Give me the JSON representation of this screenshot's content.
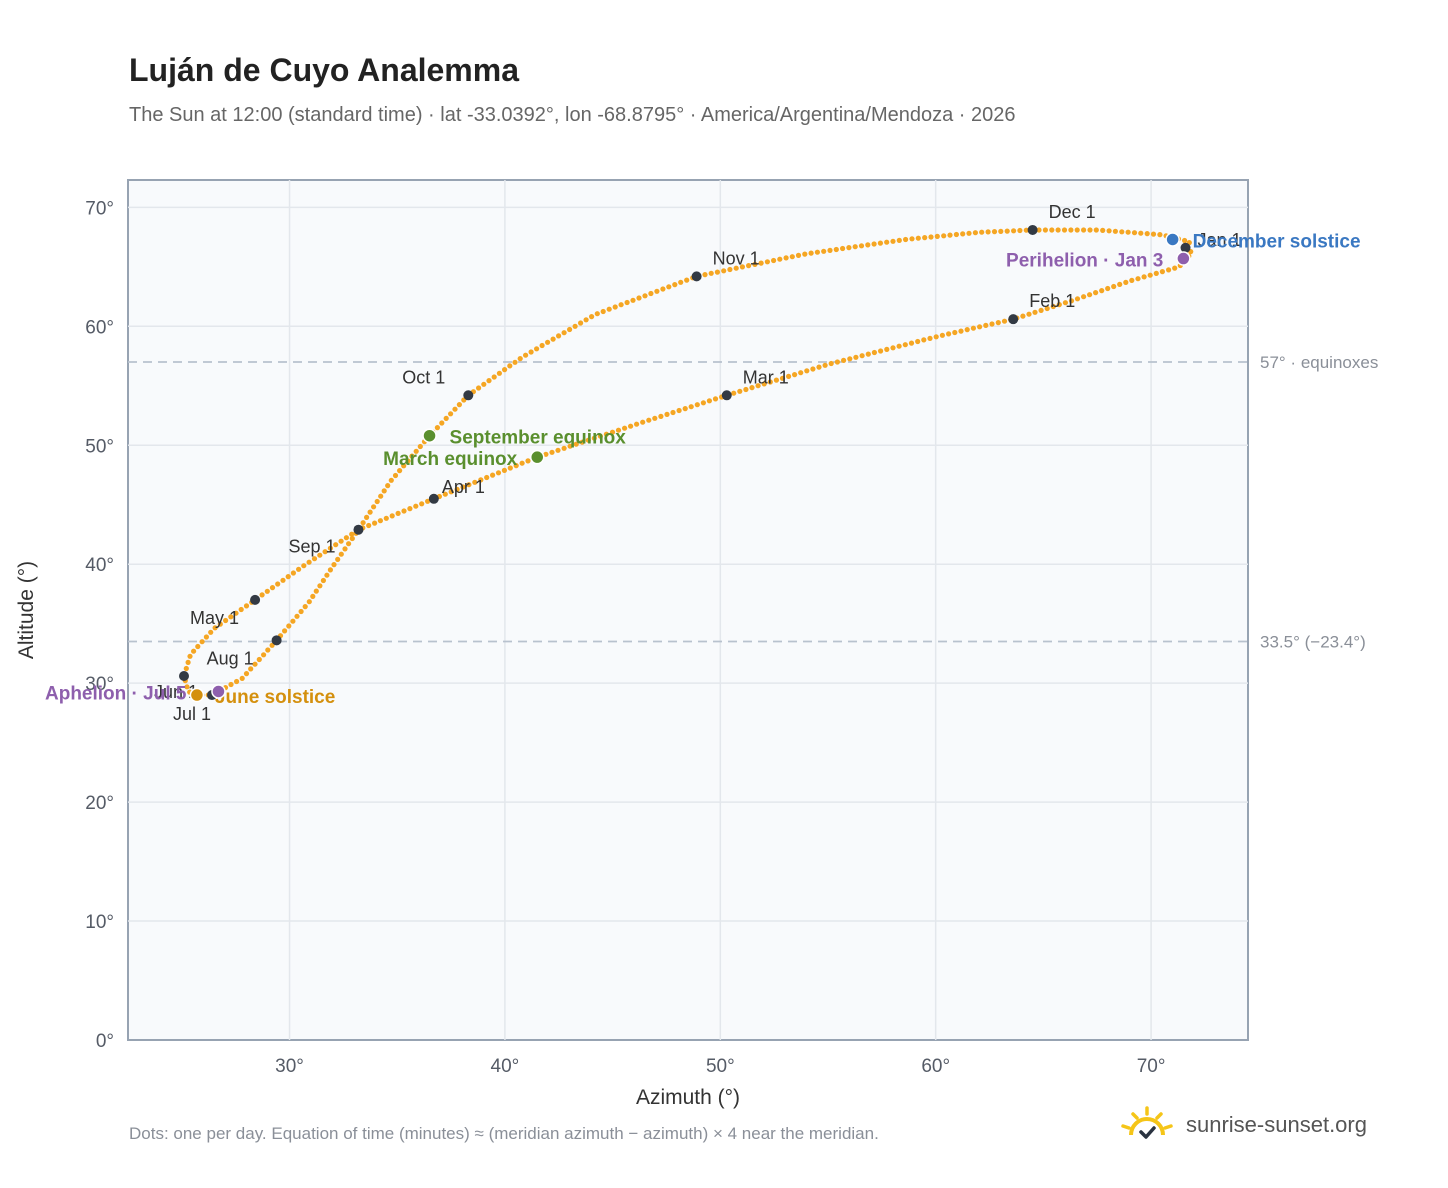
{
  "header": {
    "title": "Luján de Cuyo Analemma",
    "subtitle": "The Sun at 12:00 (standard time) · lat -33.0392°, lon -68.8795° · America/Argentina/Mendoza · 2026"
  },
  "footer": {
    "note": "Dots: one per day. Equation of time (minutes) ≈ (meridian azimuth − azimuth) × 4 near the meridian.",
    "brand": "sunrise-sunset.org"
  },
  "colors": {
    "path": "#f5a623",
    "month": "#333a44",
    "equinox": "#5a8f2e",
    "june_solstice": "#d4900e",
    "december_solstice": "#3a78c2",
    "apsis": "#8e5fad",
    "reference_line": "#b8c2ce",
    "plot_bg": "#f8fafc",
    "grid": "#e3e7ec",
    "axis_text": "#555b66",
    "brand_icon": "#f5c518"
  },
  "chart_data": {
    "type": "scatter",
    "title": "Luján de Cuyo Analemma",
    "xlabel": "Azimuth (°)",
    "ylabel": "Altitude (°)",
    "xlim": [
      22.5,
      74.5
    ],
    "ylim": [
      0,
      72.3
    ],
    "xticks": [
      30,
      40,
      50,
      60,
      70
    ],
    "yticks": [
      0,
      10,
      20,
      30,
      40,
      50,
      60,
      70
    ],
    "tick_suffix": "°",
    "grid": true,
    "reference_lines": [
      {
        "y": 57,
        "label": "57° · equinoxes"
      },
      {
        "y": 33.5,
        "label": "33.5° (−23.4°)"
      }
    ],
    "month_markers": [
      {
        "label": "Jan 1",
        "azimuth": 71.6,
        "altitude": 66.6
      },
      {
        "label": "Feb 1",
        "azimuth": 63.6,
        "altitude": 60.6
      },
      {
        "label": "Mar 1",
        "azimuth": 50.3,
        "altitude": 54.2
      },
      {
        "label": "Apr 1",
        "azimuth": 36.7,
        "altitude": 45.5
      },
      {
        "label": "May 1",
        "azimuth": 28.4,
        "altitude": 37.0
      },
      {
        "label": "Jun 1",
        "azimuth": 25.1,
        "altitude": 30.6
      },
      {
        "label": "Jul 1",
        "azimuth": 26.4,
        "altitude": 29.0
      },
      {
        "label": "Aug 1",
        "azimuth": 29.4,
        "altitude": 33.6
      },
      {
        "label": "Sep 1",
        "azimuth": 33.2,
        "altitude": 42.9
      },
      {
        "label": "Oct 1",
        "azimuth": 38.3,
        "altitude": 54.2
      },
      {
        "label": "Nov 1",
        "azimuth": 48.9,
        "altitude": 64.2
      },
      {
        "label": "Dec 1",
        "azimuth": 64.5,
        "altitude": 68.1
      }
    ],
    "events": [
      {
        "label": "March equinox",
        "azimuth": 41.5,
        "altitude": 49.0,
        "kind": "equinox"
      },
      {
        "label": "September equinox",
        "azimuth": 36.5,
        "altitude": 50.8,
        "kind": "equinox"
      },
      {
        "label": "June solstice",
        "azimuth": 25.7,
        "altitude": 29.0,
        "kind": "june_solstice"
      },
      {
        "label": "December solstice",
        "azimuth": 71.0,
        "altitude": 67.3,
        "kind": "december_solstice"
      },
      {
        "label": "Perihelion · Jan 3",
        "azimuth": 71.5,
        "altitude": 65.7,
        "kind": "apsis"
      },
      {
        "label": "Aphelion · Jul 5",
        "azimuth": 26.7,
        "altitude": 29.3,
        "kind": "apsis"
      }
    ],
    "path_vertices": [
      [
        71.6,
        66.6
      ],
      [
        71.9,
        66.2
      ],
      [
        71.3,
        65.0
      ],
      [
        69.0,
        63.8
      ],
      [
        66.4,
        62.2
      ],
      [
        63.6,
        60.6
      ],
      [
        60.2,
        59.2
      ],
      [
        55.0,
        56.8
      ],
      [
        50.3,
        54.2
      ],
      [
        46.5,
        52.0
      ],
      [
        41.5,
        49.0
      ],
      [
        36.7,
        45.5
      ],
      [
        33.2,
        42.9
      ],
      [
        30.6,
        39.8
      ],
      [
        28.4,
        37.0
      ],
      [
        26.5,
        34.6
      ],
      [
        25.4,
        32.4
      ],
      [
        25.1,
        30.6
      ],
      [
        25.3,
        29.3
      ],
      [
        25.7,
        29.0
      ],
      [
        26.4,
        29.0
      ],
      [
        26.7,
        29.3
      ],
      [
        27.8,
        30.4
      ],
      [
        29.4,
        33.6
      ],
      [
        30.9,
        36.8
      ],
      [
        32.0,
        39.8
      ],
      [
        33.2,
        42.9
      ],
      [
        34.7,
        47.0
      ],
      [
        36.5,
        50.8
      ],
      [
        38.3,
        54.2
      ],
      [
        40.8,
        57.4
      ],
      [
        44.2,
        61.0
      ],
      [
        48.9,
        64.2
      ],
      [
        54.0,
        66.1
      ],
      [
        58.6,
        67.3
      ],
      [
        62.0,
        67.9
      ],
      [
        64.5,
        68.1
      ],
      [
        67.5,
        68.1
      ],
      [
        70.5,
        67.7
      ],
      [
        71.8,
        67.1
      ],
      [
        71.6,
        66.6
      ]
    ]
  }
}
